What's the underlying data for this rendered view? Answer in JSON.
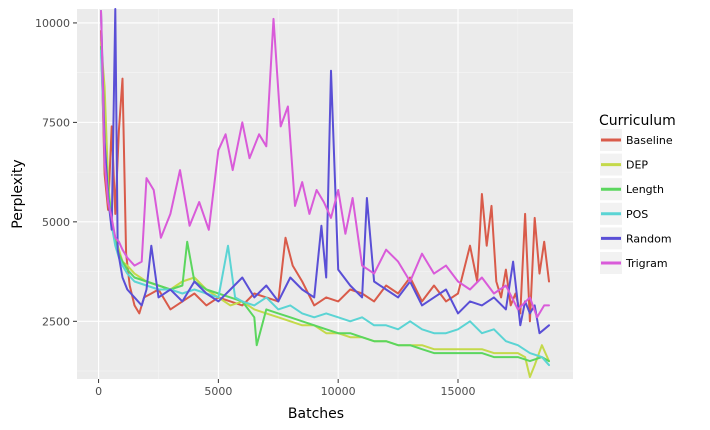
{
  "chart_data": {
    "type": "line",
    "title": "",
    "xlabel": "Batches",
    "ylabel": "Perplexity",
    "xlim": [
      -900,
      19800
    ],
    "ylim": [
      1050,
      10350
    ],
    "xticks": [
      0,
      5000,
      10000,
      15000
    ],
    "xtick_labels": [
      "0",
      "5000",
      "10000",
      "15000"
    ],
    "yticks": [
      2500,
      5000,
      7500,
      10000
    ],
    "ytick_labels": [
      "2500",
      "5000",
      "7500",
      "10000"
    ],
    "grid": true,
    "legend": {
      "title": "Curriculum",
      "position": "right"
    },
    "series": [
      {
        "name": "Baseline",
        "color": "#d95b4a",
        "x": [
          100,
          250,
          400,
          550,
          700,
          850,
          1000,
          1150,
          1300,
          1500,
          1700,
          1900,
          2200,
          2500,
          3000,
          3500,
          4000,
          4500,
          5000,
          5500,
          6000,
          6500,
          7000,
          7500,
          7800,
          8100,
          8500,
          9000,
          9500,
          10000,
          10500,
          11000,
          11500,
          12000,
          12500,
          13000,
          13500,
          14000,
          14500,
          15000,
          15500,
          15800,
          16000,
          16200,
          16400,
          16600,
          16800,
          17000,
          17200,
          17400,
          17600,
          17800,
          18000,
          18200,
          18400,
          18600,
          18800
        ],
        "y": [
          9800,
          6200,
          5300,
          7400,
          5200,
          7300,
          8600,
          4200,
          3400,
          2900,
          2700,
          3100,
          3200,
          3300,
          2800,
          3000,
          3200,
          2900,
          3100,
          3000,
          2900,
          3200,
          3100,
          3000,
          4600,
          3900,
          3500,
          2900,
          3100,
          3000,
          3300,
          3200,
          3000,
          3400,
          3200,
          3600,
          3000,
          3400,
          3000,
          3200,
          4400,
          3500,
          5700,
          4400,
          5400,
          3500,
          3100,
          3800,
          2900,
          3200,
          2700,
          5200,
          2500,
          5100,
          3700,
          4500,
          3500
        ]
      },
      {
        "name": "DEP",
        "color": "#c4d94a",
        "x": [
          100,
          250,
          400,
          550,
          700,
          850,
          1000,
          1200,
          1500,
          2000,
          2500,
          3000,
          3500,
          4000,
          4500,
          5000,
          5500,
          6000,
          6500,
          7000,
          7500,
          8000,
          8500,
          9000,
          9500,
          10000,
          10500,
          11000,
          11500,
          12000,
          12500,
          13000,
          13500,
          14000,
          14500,
          15000,
          15500,
          16000,
          16500,
          17000,
          17500,
          17800,
          18000,
          18200,
          18500,
          18800
        ],
        "y": [
          9500,
          8400,
          6000,
          5000,
          4600,
          4300,
          4000,
          3900,
          3700,
          3500,
          3400,
          3300,
          3500,
          3600,
          3300,
          3100,
          2900,
          3000,
          2800,
          2700,
          2600,
          2500,
          2400,
          2400,
          2200,
          2200,
          2100,
          2100,
          2000,
          2000,
          1900,
          1900,
          1900,
          1800,
          1800,
          1800,
          1800,
          1800,
          1700,
          1700,
          1700,
          1600,
          1100,
          1400,
          1900,
          1500
        ]
      },
      {
        "name": "Length",
        "color": "#5bd65e",
        "x": [
          100,
          250,
          400,
          550,
          700,
          850,
          1000,
          1200,
          1500,
          2000,
          2500,
          3000,
          3500,
          3700,
          4000,
          4500,
          5000,
          5500,
          6000,
          6500,
          6600,
          7000,
          7500,
          8000,
          8500,
          9000,
          9500,
          10000,
          10500,
          11000,
          11500,
          12000,
          12500,
          13000,
          13500,
          14000,
          14500,
          15000,
          15500,
          16000,
          16500,
          17000,
          17500,
          18000,
          18500,
          18800
        ],
        "y": [
          9400,
          7000,
          5800,
          5000,
          4500,
          4200,
          4000,
          3800,
          3600,
          3500,
          3400,
          3300,
          3400,
          4500,
          3500,
          3300,
          3200,
          3100,
          3000,
          2600,
          1900,
          2800,
          2700,
          2600,
          2500,
          2400,
          2300,
          2200,
          2200,
          2100,
          2000,
          2000,
          1900,
          1900,
          1800,
          1700,
          1700,
          1700,
          1700,
          1700,
          1600,
          1600,
          1600,
          1500,
          1600,
          1500
        ]
      },
      {
        "name": "POS",
        "color": "#5bd4d4",
        "x": [
          100,
          250,
          400,
          550,
          700,
          850,
          1000,
          1200,
          1500,
          2000,
          2500,
          3000,
          3500,
          4000,
          4500,
          5000,
          5400,
          5700,
          6000,
          6500,
          7000,
          7500,
          8000,
          8500,
          9000,
          9500,
          10000,
          10500,
          11000,
          11500,
          12000,
          12500,
          13000,
          13500,
          14000,
          14500,
          15000,
          15500,
          16000,
          16500,
          17000,
          17500,
          18000,
          18500,
          18800
        ],
        "y": [
          9300,
          6800,
          5600,
          4900,
          4400,
          4100,
          3900,
          3700,
          3500,
          3400,
          3300,
          3300,
          3200,
          3300,
          3200,
          3100,
          4400,
          3100,
          3000,
          2900,
          3100,
          2800,
          2900,
          2700,
          2600,
          2700,
          2600,
          2500,
          2600,
          2400,
          2400,
          2300,
          2500,
          2300,
          2200,
          2200,
          2300,
          2500,
          2200,
          2300,
          2000,
          1900,
          1700,
          1600,
          1400
        ]
      },
      {
        "name": "Random",
        "color": "#5a4fd6",
        "x": [
          100,
          250,
          400,
          550,
          700,
          800,
          1000,
          1200,
          1500,
          1800,
          2000,
          2200,
          2500,
          3000,
          3500,
          4000,
          4500,
          5000,
          5500,
          6000,
          6500,
          7000,
          7500,
          8000,
          8500,
          9000,
          9300,
          9500,
          9700,
          10000,
          10500,
          11000,
          11200,
          11500,
          12000,
          12500,
          13000,
          13500,
          14000,
          14500,
          15000,
          15500,
          16000,
          16500,
          17000,
          17300,
          17600,
          17800,
          18000,
          18200,
          18400,
          18600,
          18800
        ],
        "y": [
          10300,
          7000,
          5600,
          4800,
          10400,
          4300,
          3600,
          3300,
          3100,
          2900,
          3300,
          4400,
          3100,
          3300,
          3000,
          3500,
          3200,
          3000,
          3300,
          3600,
          3100,
          3400,
          3000,
          3600,
          3300,
          3100,
          4900,
          3600,
          8800,
          3800,
          3400,
          3100,
          5600,
          3500,
          3300,
          3100,
          3500,
          2900,
          3100,
          3300,
          2700,
          3000,
          2900,
          3100,
          2800,
          4000,
          2400,
          3000,
          2700,
          2900,
          2200,
          2300,
          2400
        ]
      },
      {
        "name": "Trigram",
        "color": "#d95bd9",
        "x": [
          100,
          250,
          400,
          550,
          700,
          850,
          1000,
          1200,
          1500,
          1800,
          2000,
          2300,
          2600,
          3000,
          3400,
          3800,
          4200,
          4600,
          5000,
          5300,
          5600,
          6000,
          6300,
          6700,
          7000,
          7300,
          7600,
          7900,
          8200,
          8500,
          8800,
          9100,
          9400,
          9700,
          10000,
          10300,
          10600,
          11000,
          11500,
          12000,
          12500,
          13000,
          13500,
          14000,
          14500,
          15000,
          15500,
          16000,
          16500,
          17000,
          17500,
          18000,
          18300,
          18600,
          18800
        ],
        "y": [
          10300,
          6500,
          5500,
          5100,
          4600,
          4500,
          4300,
          4100,
          3900,
          4000,
          6100,
          5800,
          4600,
          5200,
          6300,
          4900,
          5500,
          4800,
          6800,
          7200,
          6300,
          7500,
          6600,
          7200,
          6900,
          10100,
          7400,
          7900,
          5400,
          6000,
          5200,
          5800,
          5500,
          5100,
          5800,
          4700,
          5600,
          3900,
          3700,
          4300,
          4000,
          3500,
          4200,
          3700,
          3900,
          3500,
          3300,
          3600,
          3200,
          3400,
          2800,
          3100,
          2600,
          2900,
          2900
        ]
      }
    ]
  }
}
